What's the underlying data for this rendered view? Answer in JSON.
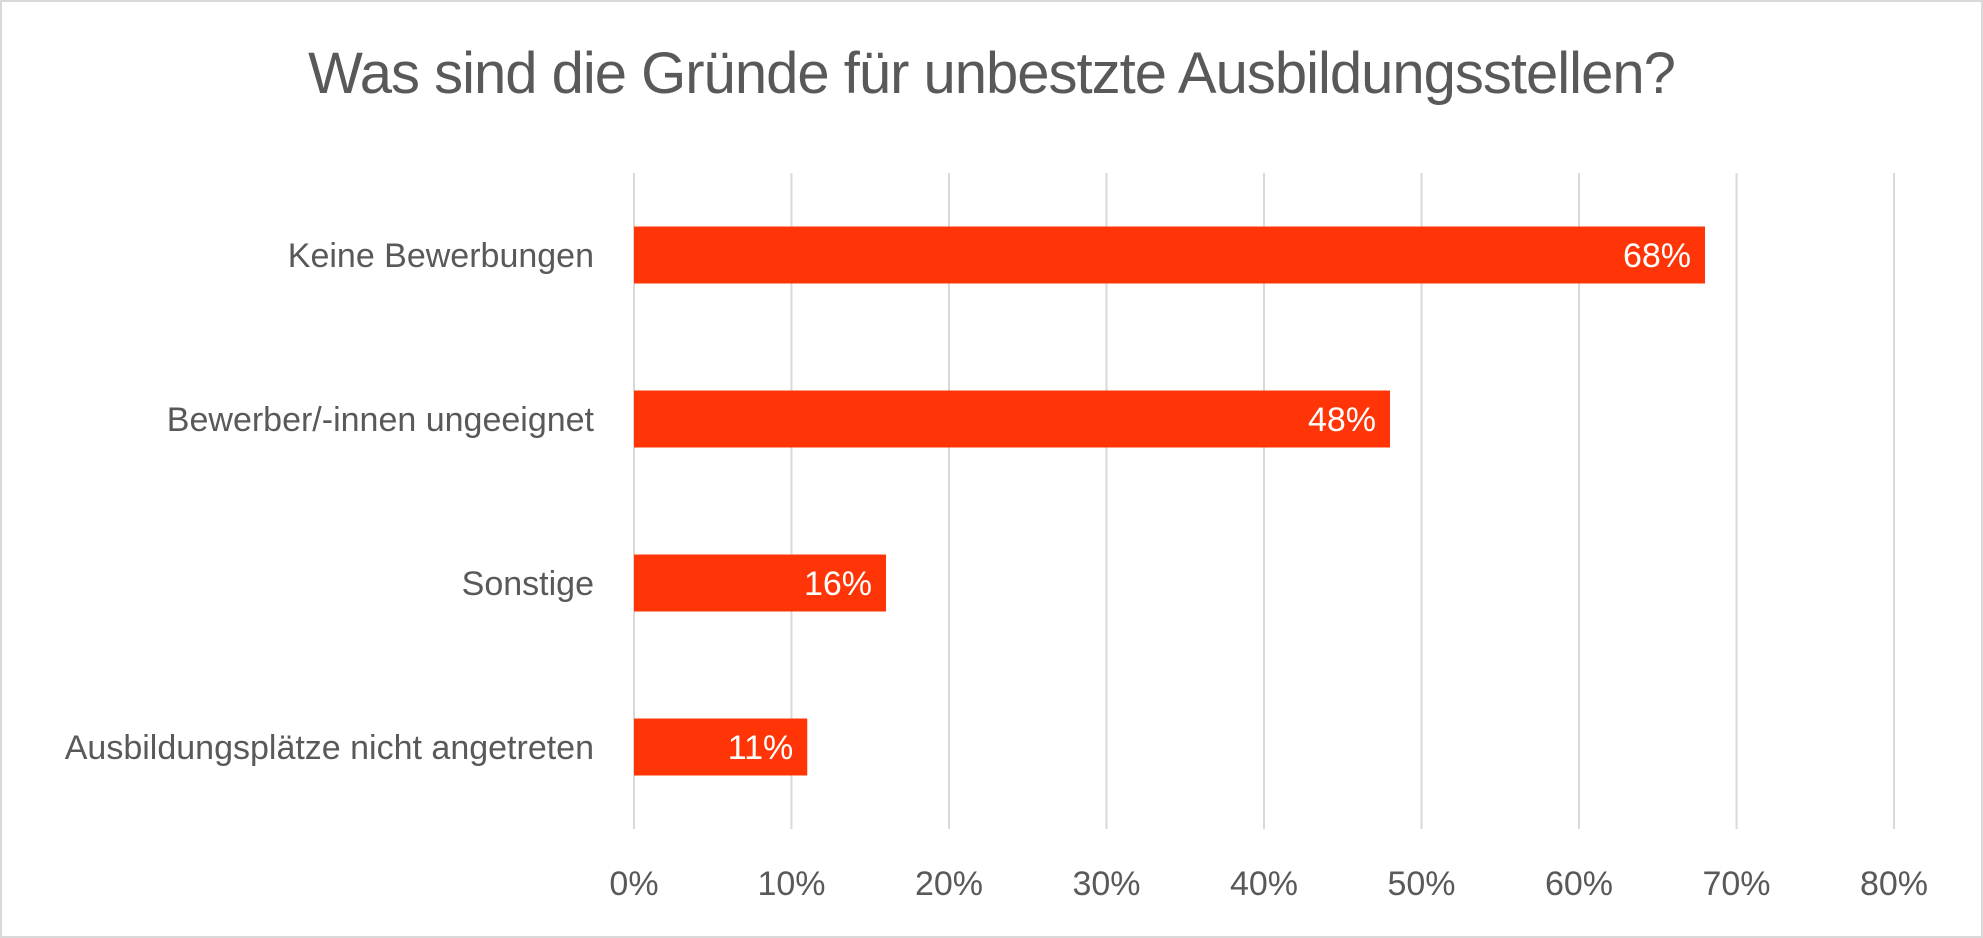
{
  "chart_data": {
    "type": "bar",
    "orientation": "horizontal",
    "title": "Was sind die Gründe für unbestzte Ausbildungsstellen?",
    "categories": [
      "Keine Bewerbungen",
      "Bewerber/-innen ungeeignet",
      "Sonstige",
      "Ausbildungsplätze nicht angetreten"
    ],
    "values": [
      68,
      48,
      16,
      11
    ],
    "data_labels": [
      "68%",
      "48%",
      "16%",
      "11%"
    ],
    "xlim": [
      0,
      80
    ],
    "x_ticks": [
      "0%",
      "10%",
      "20%",
      "30%",
      "40%",
      "50%",
      "60%",
      "70%",
      "80%"
    ],
    "grid": "vertical",
    "legend": "none",
    "colors": {
      "bar": "#FF3508",
      "text": "#595959",
      "grid": "#d9d9d9"
    }
  }
}
